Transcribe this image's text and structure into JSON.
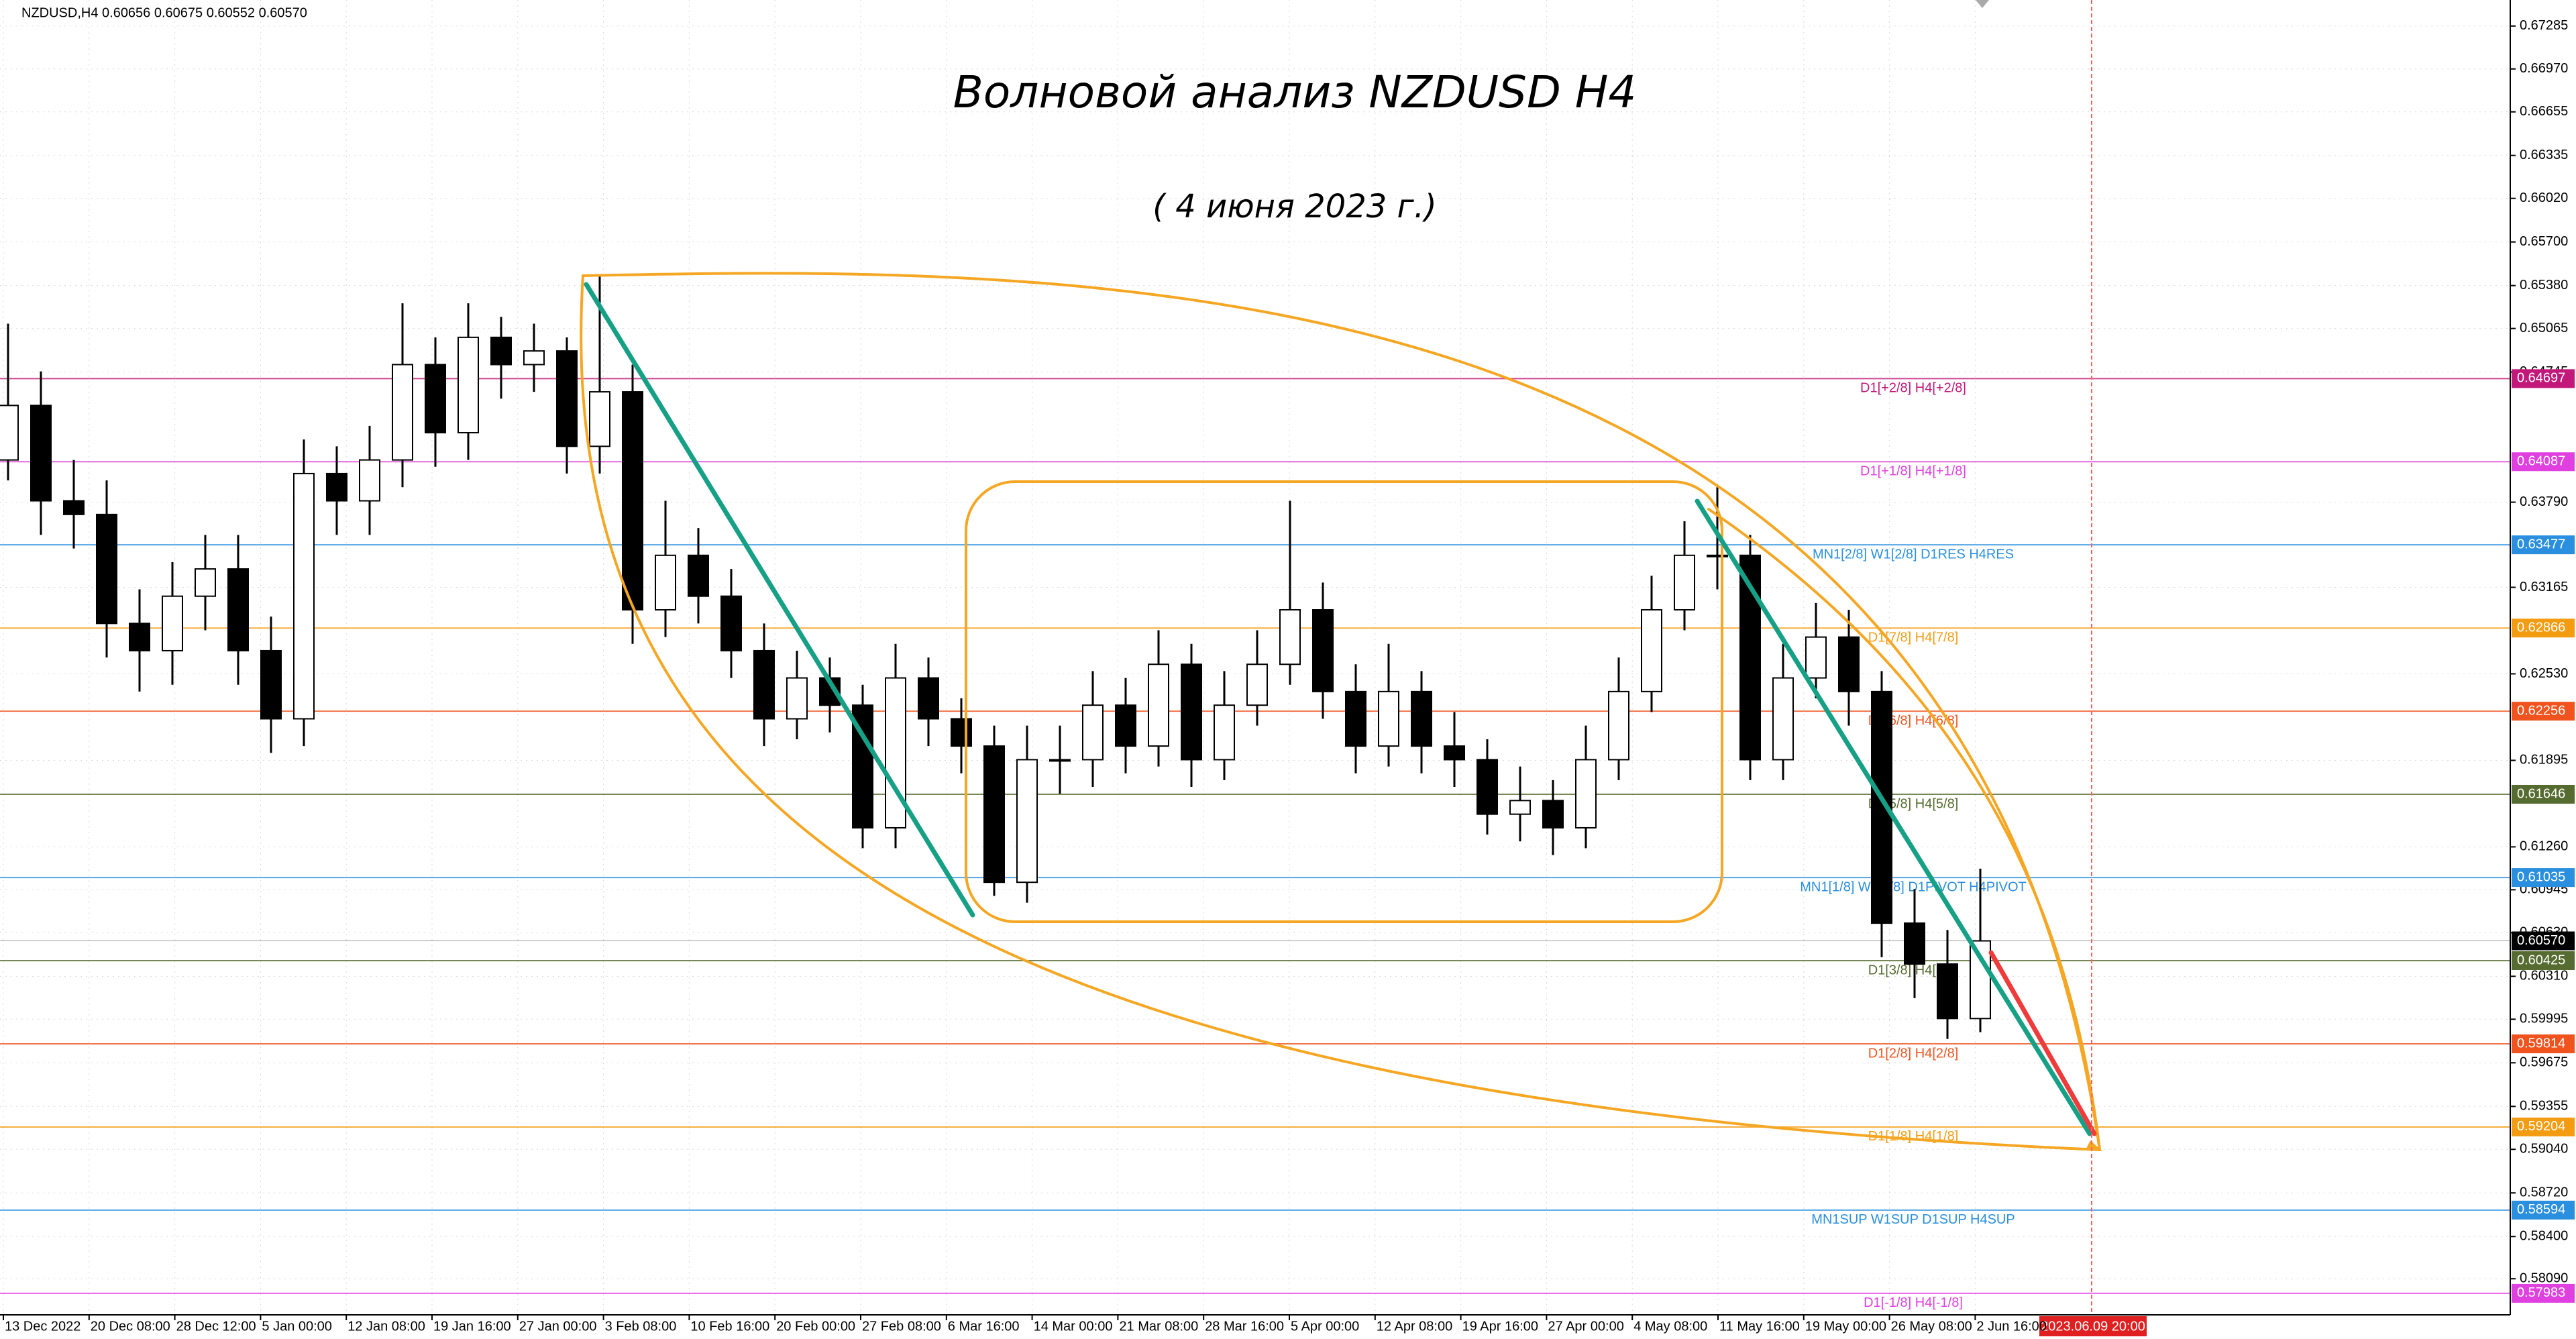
{
  "chart_data": {
    "type": "candlestick",
    "header": "NZDUSD,H4  0.60656 0.60675 0.60552 0.60570",
    "title": "Волновой анализ NZDUSD H4",
    "subtitle": "( 4 июня 2023 г.)",
    "categories": [
      "13 Dec 2022",
      "20 Dec 08:00",
      "28 Dec 12:00",
      "5 Jan 00:00",
      "12 Jan 08:00",
      "19 Jan 16:00",
      "27 Jan 00:00",
      "3 Feb 08:00",
      "10 Feb 16:00",
      "20 Feb 00:00",
      "27 Feb 08:00",
      "6 Mar 16:00",
      "14 Mar 00:00",
      "21 Mar 08:00",
      "28 Mar 16:00",
      "5 Apr 00:00",
      "12 Apr 08:00",
      "19 Apr 16:00",
      "27 Apr 00:00",
      "4 May 08:00",
      "11 May 16:00",
      "19 May 00:00",
      "26 May 08:00",
      "2 Jun 16:00"
    ],
    "x_marker": "2023.06.09 20:00",
    "ylim": [
      0.57825,
      0.67476
    ],
    "yticks": [
      0.67285,
      {
        "value": 0.6697,
        "label": "0.66970"
      },
      0.66655,
      0.66335,
      {
        "value": 0.6602,
        "label": "0.66020"
      },
      {
        "value": 0.657,
        "label": "0.65700"
      },
      {
        "value": 0.6538,
        "label": "0.65380"
      },
      0.65065,
      0.64745,
      {
        "value": 0.6379,
        "label": "0.63790"
      },
      0.63165,
      {
        "value": 0.6253,
        "label": "0.62530"
      },
      0.61895,
      {
        "value": 0.6126,
        "label": "0.61260"
      },
      0.60945,
      {
        "value": 0.6063,
        "label": "0.60630"
      },
      {
        "value": 0.6031,
        "label": "0.60310"
      },
      0.59995,
      0.59675,
      0.59355,
      {
        "value": 0.5904,
        "label": "0.59040"
      },
      {
        "value": 0.5872,
        "label": "0.58720"
      },
      {
        "value": 0.584,
        "label": "0.58400"
      },
      {
        "value": 0.5809,
        "label": "0.58090"
      }
    ],
    "grid": true,
    "up_color": "#ffffff",
    "down_color": "#000000",
    "candles": {
      "open": [
        0.641,
        0.645,
        0.638,
        0.637,
        0.629,
        0.627,
        0.631,
        0.633,
        0.627,
        0.622,
        0.64,
        0.638,
        0.641,
        0.648,
        0.643,
        0.65,
        0.648,
        0.649,
        0.642,
        0.646,
        0.63,
        0.634,
        0.631,
        0.627,
        0.622,
        0.625,
        0.623,
        0.614,
        0.625,
        0.622,
        0.62,
        0.61,
        0.619,
        0.619,
        0.623,
        0.62,
        0.626,
        0.619,
        0.623,
        0.626,
        0.63,
        0.624,
        0.62,
        0.624,
        0.62,
        0.619,
        0.615,
        0.616,
        0.614,
        0.619,
        0.624,
        0.63,
        0.634,
        0.634,
        0.619,
        0.625,
        0.628,
        0.624,
        0.607,
        0.604,
        0.6
      ],
      "high": [
        0.651,
        0.6475,
        0.641,
        0.6395,
        0.6315,
        0.6335,
        0.6355,
        0.6355,
        0.6295,
        0.6425,
        0.642,
        0.6435,
        0.6525,
        0.65,
        0.6525,
        0.6515,
        0.651,
        0.65,
        0.6545,
        0.648,
        0.638,
        0.636,
        0.633,
        0.629,
        0.627,
        0.6265,
        0.6245,
        0.6275,
        0.6265,
        0.6235,
        0.6215,
        0.6215,
        0.6215,
        0.6255,
        0.625,
        0.6285,
        0.6275,
        0.6255,
        0.6285,
        0.638,
        0.632,
        0.626,
        0.6275,
        0.6255,
        0.6225,
        0.6205,
        0.6185,
        0.6175,
        0.6215,
        0.6265,
        0.6325,
        0.6365,
        0.639,
        0.6355,
        0.6275,
        0.6305,
        0.63,
        0.6255,
        0.6095,
        0.6065,
        0.611
      ],
      "low": [
        0.6395,
        0.6355,
        0.6345,
        0.6265,
        0.624,
        0.6245,
        0.6285,
        0.6245,
        0.6195,
        0.62,
        0.6355,
        0.6355,
        0.639,
        0.6405,
        0.641,
        0.6455,
        0.646,
        0.64,
        0.64,
        0.6275,
        0.628,
        0.629,
        0.625,
        0.62,
        0.6205,
        0.621,
        0.6125,
        0.6125,
        0.62,
        0.618,
        0.609,
        0.6085,
        0.6165,
        0.617,
        0.618,
        0.6185,
        0.617,
        0.6175,
        0.6215,
        0.6245,
        0.622,
        0.618,
        0.6185,
        0.618,
        0.617,
        0.6135,
        0.613,
        0.612,
        0.6125,
        0.6175,
        0.6225,
        0.6285,
        0.6315,
        0.6175,
        0.6175,
        0.6235,
        0.6215,
        0.6045,
        0.6015,
        0.5985,
        0.599
      ],
      "close": [
        0.645,
        0.638,
        0.637,
        0.629,
        0.627,
        0.631,
        0.633,
        0.627,
        0.622,
        0.64,
        0.638,
        0.641,
        0.648,
        0.643,
        0.65,
        0.648,
        0.649,
        0.642,
        0.646,
        0.63,
        0.634,
        0.631,
        0.627,
        0.622,
        0.625,
        0.623,
        0.614,
        0.625,
        0.622,
        0.62,
        0.61,
        0.619,
        0.619,
        0.623,
        0.62,
        0.626,
        0.619,
        0.623,
        0.626,
        0.63,
        0.624,
        0.62,
        0.624,
        0.62,
        0.619,
        0.615,
        0.616,
        0.614,
        0.619,
        0.624,
        0.63,
        0.634,
        0.634,
        0.619,
        0.625,
        0.628,
        0.624,
        0.607,
        0.604,
        0.6,
        0.6057
      ]
    },
    "levels": [
      {
        "label": "D1[+2/8] H4[+2/8]",
        "value": 0.64697,
        "color": "#c2187a"
      },
      {
        "label": "D1[+1/8] H4[+1/8]",
        "value": 0.64087,
        "color": "#e040e0"
      },
      {
        "label": "MN1[2/8] W1[2/8] D1RES H4RES",
        "value": 0.63477,
        "color": "#2a8fde"
      },
      {
        "label": "D1[7/8] H4[7/8]",
        "value": 0.62866,
        "color": "#f39c12"
      },
      {
        "label": "D1[6/8] H4[6/8]",
        "value": 0.62256,
        "color": "#f0531e"
      },
      {
        "label": "D1[5/8] H4[5/8]",
        "value": 0.61646,
        "color": "#556b2f"
      },
      {
        "label": "MN1[1/8] W1[1/8] D1PIVOT H4PIVOT",
        "value": 0.61035,
        "color": "#2a8fde"
      },
      {
        "label": "D1[3/8] H4[3/8]",
        "value": 0.60425,
        "color": "#556b2f"
      },
      {
        "label": "D1[2/8] H4[2/8]",
        "value": 0.59814,
        "color": "#f0531e"
      },
      {
        "label": "D1[1/8] H4[1/8]",
        "value": 0.59204,
        "color": "#f39c12"
      },
      {
        "label": "MN1SUP W1SUP D1SUP H4SUP",
        "value": 0.58594,
        "color": "#2a8fde"
      },
      {
        "label": "D1[-1/8] H4[-1/8]",
        "value": 0.57983,
        "color": "#e040e0"
      }
    ],
    "current_price": {
      "value": 0.6057,
      "label": "0.60570"
    }
  }
}
